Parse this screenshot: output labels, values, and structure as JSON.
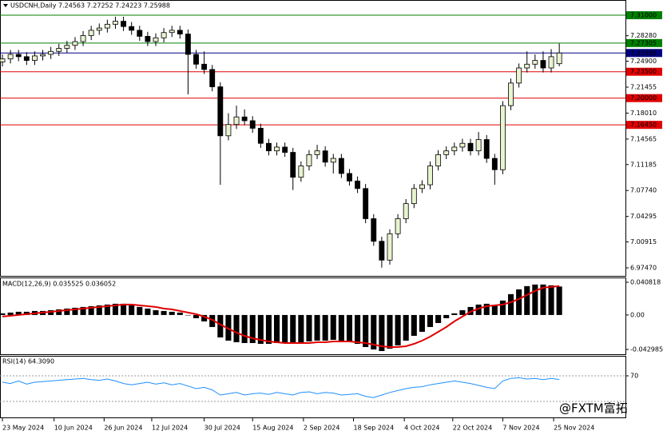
{
  "chart_data": [
    {
      "type": "candlestick",
      "title": "USDCNH,Daily 7.24563 7.27252 7.24223 7.25988",
      "up_color": "#e8f3d0",
      "down_color": "#000000",
      "outline_color": "#000000",
      "candles": {
        "open": [
          7.248,
          7.252,
          7.258,
          7.255,
          7.25,
          7.256,
          7.258,
          7.262,
          7.266,
          7.27,
          7.275,
          7.283,
          7.29,
          7.293,
          7.298,
          7.302,
          7.295,
          7.29,
          7.282,
          7.275,
          7.28,
          7.287,
          7.29,
          7.285,
          7.258,
          7.245,
          7.238,
          7.215,
          7.15,
          7.165,
          7.175,
          7.17,
          7.16,
          7.14,
          7.13,
          7.135,
          7.128,
          7.095,
          7.11,
          7.125,
          7.13,
          7.115,
          7.12,
          7.1,
          7.09,
          7.08,
          7.04,
          7.01,
          6.985,
          7.02,
          7.04,
          7.06,
          7.08,
          7.085,
          7.11,
          7.125,
          7.13,
          7.135,
          7.14,
          7.13,
          7.145,
          7.12,
          7.105,
          7.19,
          7.22,
          7.24,
          7.245,
          7.25,
          7.24,
          7.24563
        ],
        "high": [
          7.258,
          7.264,
          7.264,
          7.261,
          7.262,
          7.264,
          7.268,
          7.272,
          7.276,
          7.281,
          7.289,
          7.296,
          7.299,
          7.304,
          7.308,
          7.308,
          7.301,
          7.296,
          7.288,
          7.286,
          7.293,
          7.296,
          7.296,
          7.291,
          7.264,
          7.262,
          7.244,
          7.221,
          7.18,
          7.19,
          7.185,
          7.176,
          7.166,
          7.146,
          7.141,
          7.141,
          7.134,
          7.116,
          7.131,
          7.138,
          7.136,
          7.126,
          7.126,
          7.106,
          7.096,
          7.086,
          7.046,
          7.016,
          7.026,
          7.046,
          7.066,
          7.086,
          7.091,
          7.116,
          7.131,
          7.136,
          7.141,
          7.146,
          7.146,
          7.155,
          7.151,
          7.126,
          7.196,
          7.226,
          7.246,
          7.262,
          7.258,
          7.262,
          7.265,
          7.27252
        ],
        "low": [
          7.242,
          7.246,
          7.249,
          7.244,
          7.244,
          7.25,
          7.252,
          7.256,
          7.26,
          7.264,
          7.269,
          7.277,
          7.284,
          7.287,
          7.292,
          7.289,
          7.284,
          7.276,
          7.269,
          7.269,
          7.274,
          7.281,
          7.279,
          7.205,
          7.239,
          7.232,
          7.209,
          7.085,
          7.144,
          7.159,
          7.164,
          7.154,
          7.134,
          7.124,
          7.124,
          7.122,
          7.078,
          7.089,
          7.104,
          7.119,
          7.109,
          7.1,
          7.094,
          7.084,
          7.074,
          7.034,
          7.004,
          6.975,
          6.979,
          7.014,
          7.034,
          7.054,
          7.074,
          7.079,
          7.104,
          7.119,
          7.124,
          7.129,
          7.124,
          7.124,
          7.114,
          7.085,
          7.099,
          7.184,
          7.214,
          7.234,
          7.239,
          7.234,
          7.234,
          7.24223
        ],
        "close": [
          7.252,
          7.258,
          7.255,
          7.25,
          7.256,
          7.258,
          7.262,
          7.266,
          7.27,
          7.275,
          7.283,
          7.29,
          7.293,
          7.298,
          7.302,
          7.295,
          7.29,
          7.282,
          7.275,
          7.28,
          7.287,
          7.29,
          7.285,
          7.258,
          7.245,
          7.238,
          7.215,
          7.15,
          7.165,
          7.175,
          7.17,
          7.16,
          7.14,
          7.13,
          7.135,
          7.128,
          7.095,
          7.11,
          7.125,
          7.13,
          7.115,
          7.12,
          7.1,
          7.09,
          7.08,
          7.04,
          7.01,
          6.985,
          7.02,
          7.04,
          7.06,
          7.08,
          7.085,
          7.11,
          7.125,
          7.13,
          7.135,
          7.14,
          7.13,
          7.145,
          7.12,
          7.105,
          7.19,
          7.22,
          7.24,
          7.245,
          7.25,
          7.24,
          7.255,
          7.25988
        ]
      },
      "xlim": [
        -0.3,
        77.2
      ],
      "xticks": [
        {
          "value": 0,
          "label": "23 May 2024"
        },
        {
          "value": 6.4,
          "label": "10 Jun 2024"
        },
        {
          "value": 12.6,
          "label": "26 Jun 2024"
        },
        {
          "value": 18.5,
          "label": "12 Jul 2024"
        },
        {
          "value": 25,
          "label": "30 Jul 2024"
        },
        {
          "value": 31,
          "label": "15 Aug 2024"
        },
        {
          "value": 37.3,
          "label": "2 Sep 2024"
        },
        {
          "value": 43.5,
          "label": "18 Sep 2024"
        },
        {
          "value": 49.8,
          "label": "4 Oct 2024"
        },
        {
          "value": 55.8,
          "label": "22 Oct 2024"
        },
        {
          "value": 62,
          "label": "7 Nov 2024"
        },
        {
          "value": 68.3,
          "label": "25 Nov 2024"
        }
      ],
      "ylim": [
        6.9641,
        7.3302
      ],
      "yticks": [
        {
          "value": 7.2828,
          "label": "7.28280"
        },
        {
          "value": 7.249,
          "label": "7.24900"
        },
        {
          "value": 7.21455,
          "label": "7.21455"
        },
        {
          "value": 7.1801,
          "label": "7.18010"
        },
        {
          "value": 7.14565,
          "label": "7.14565"
        },
        {
          "value": 7.11185,
          "label": "7.11185"
        },
        {
          "value": 7.0774,
          "label": "7.07740"
        },
        {
          "value": 7.04295,
          "label": "7.04295"
        },
        {
          "value": 7.00915,
          "label": "7.00915"
        },
        {
          "value": 6.9747,
          "label": "6.97470"
        }
      ],
      "levels": [
        {
          "value": 7.31,
          "label": "7.31000",
          "color": "#008000"
        },
        {
          "value": 7.27305,
          "label": "7.27305",
          "color": "#008000"
        },
        {
          "value": 7.25988,
          "label": "7.25988",
          "color": "#000080"
        },
        {
          "value": 7.235,
          "label": "7.23500",
          "color": "#e00000"
        },
        {
          "value": 7.2,
          "label": "7.20000",
          "color": "#e00000"
        },
        {
          "value": 7.1645,
          "label": "7.16450",
          "color": "#e00000"
        }
      ],
      "watermark": "@FXTM富拓"
    },
    {
      "type": "bar",
      "title": "MACD(12,26,9) 0.035525 0.036052",
      "color": "#000000",
      "signal_color": "#e00000",
      "values": [
        0.002,
        0.003,
        0.004,
        0.004,
        0.005,
        0.005,
        0.006,
        0.007,
        0.008,
        0.009,
        0.01,
        0.011,
        0.012,
        0.013,
        0.014,
        0.014,
        0.012,
        0.01,
        0.008,
        0.006,
        0.005,
        0.004,
        0.003,
        0.0,
        -0.004,
        -0.008,
        -0.015,
        -0.028,
        -0.032,
        -0.034,
        -0.035,
        -0.035,
        -0.036,
        -0.036,
        -0.035,
        -0.034,
        -0.036,
        -0.035,
        -0.033,
        -0.032,
        -0.032,
        -0.031,
        -0.032,
        -0.034,
        -0.036,
        -0.04,
        -0.043,
        -0.045,
        -0.042,
        -0.038,
        -0.032,
        -0.026,
        -0.021,
        -0.015,
        -0.01,
        -0.004,
        0.002,
        0.006,
        0.01,
        0.013,
        0.014,
        0.012,
        0.018,
        0.026,
        0.032,
        0.036,
        0.038,
        0.038,
        0.037,
        0.035525
      ],
      "signal": [
        -0.002,
        -0.001,
        0.0,
        0.001,
        0.002,
        0.003,
        0.004,
        0.005,
        0.006,
        0.007,
        0.008,
        0.009,
        0.01,
        0.011,
        0.012,
        0.013,
        0.013,
        0.012,
        0.011,
        0.01,
        0.008,
        0.007,
        0.005,
        0.003,
        0.001,
        -0.002,
        -0.006,
        -0.012,
        -0.017,
        -0.022,
        -0.026,
        -0.029,
        -0.031,
        -0.033,
        -0.034,
        -0.035,
        -0.035,
        -0.035,
        -0.035,
        -0.034,
        -0.034,
        -0.033,
        -0.033,
        -0.033,
        -0.034,
        -0.035,
        -0.037,
        -0.039,
        -0.04,
        -0.04,
        -0.039,
        -0.036,
        -0.032,
        -0.027,
        -0.021,
        -0.015,
        -0.008,
        -0.002,
        0.004,
        0.008,
        0.011,
        0.012,
        0.013,
        0.016,
        0.02,
        0.025,
        0.03,
        0.034,
        0.035,
        0.036052
      ],
      "ylim": [
        -0.04897,
        0.04681
      ],
      "yticks": [
        0.040818,
        {
          "value": 0,
          "label": "0.00"
        },
        -0.042985
      ]
    },
    {
      "type": "line",
      "title": "RSI(14) 64.3090",
      "color": "#1e90ff",
      "values": [
        60,
        58,
        62,
        57,
        60,
        61,
        62,
        63,
        64,
        65,
        66,
        64,
        63,
        65,
        62,
        58,
        56,
        58,
        60,
        57,
        59,
        56,
        58,
        54,
        50,
        52,
        48,
        40,
        42,
        44,
        40,
        42,
        43,
        41,
        44,
        42,
        40,
        44,
        45,
        42,
        44,
        43,
        40,
        41,
        42,
        38,
        36,
        40,
        44,
        47,
        50,
        52,
        53,
        56,
        58,
        60,
        62,
        60,
        58,
        55,
        52,
        50,
        62,
        66,
        67,
        65,
        66,
        64,
        66,
        64.309
      ],
      "ylim": [
        5,
        101.25
      ],
      "yticks": [
        70
      ],
      "levels": [
        70,
        30
      ]
    }
  ]
}
